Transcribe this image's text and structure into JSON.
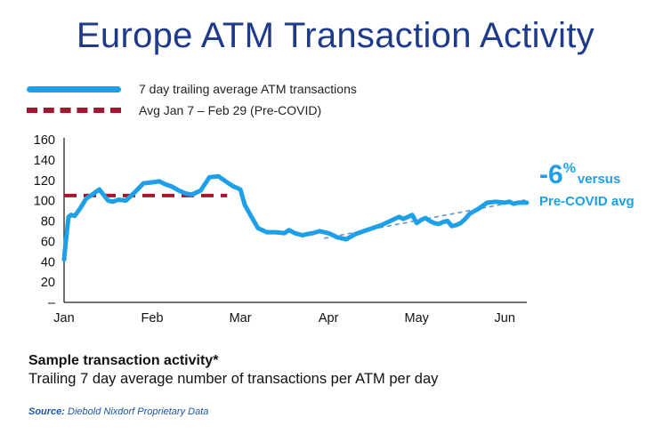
{
  "title": "Europe ATM Transaction Activity",
  "legend": [
    {
      "label": "7 day trailing average ATM transactions",
      "color": "#1ea0e8",
      "style": "solid"
    },
    {
      "label": "Avg Jan 7 – Feb 29 (Pre-COVID)",
      "color": "#a3172f",
      "style": "dashed"
    }
  ],
  "annotation": {
    "value": "-6",
    "unit": "%",
    "suffix": "versus",
    "line2": "Pre-COVID avg",
    "color": "#1ea0e8"
  },
  "footer": {
    "sample_title": "Sample transaction activity*",
    "sample_desc": "Trailing 7 day average number of transactions per ATM per day",
    "source_label": "Source:",
    "source_text": "Diebold Nixdorf Proprietary Data"
  },
  "chart_data": {
    "type": "line",
    "title": "Europe ATM Transaction Activity",
    "xlabel": "",
    "ylabel": "",
    "x_ticks": [
      "Jan",
      "Feb",
      "Mar",
      "Apr",
      "May",
      "Jun"
    ],
    "y_ticks": [
      "–",
      "20",
      "40",
      "60",
      "80",
      "100",
      "120",
      "140",
      "160"
    ],
    "xlim": [
      0,
      5.25
    ],
    "ylim": [
      0,
      160
    ],
    "grid": false,
    "legend_position": "top-left",
    "series": [
      {
        "name": "7 day trailing average ATM transactions",
        "color": "#1ea0e8",
        "x": [
          0.0,
          0.02,
          0.05,
          0.08,
          0.12,
          0.18,
          0.25,
          0.32,
          0.4,
          0.5,
          0.55,
          0.62,
          0.7,
          0.8,
          0.9,
          1.0,
          1.08,
          1.15,
          1.22,
          1.3,
          1.38,
          1.45,
          1.55,
          1.65,
          1.75,
          1.85,
          1.92,
          2.0,
          2.05,
          2.12,
          2.2,
          2.3,
          2.4,
          2.5,
          2.55,
          2.62,
          2.7,
          2.75,
          2.82,
          2.9,
          3.0,
          3.1,
          3.2,
          3.3,
          3.4,
          3.5,
          3.6,
          3.7,
          3.8,
          3.85,
          3.9,
          3.95,
          4.0,
          4.05,
          4.1,
          4.15,
          4.2,
          4.25,
          4.3,
          4.35,
          4.4,
          4.45,
          4.5,
          4.55,
          4.6,
          4.7,
          4.8,
          4.9,
          5.0,
          5.05,
          5.1,
          5.15,
          5.2,
          5.25
        ],
        "y": [
          42,
          60,
          84,
          86,
          85,
          92,
          102,
          106,
          111,
          100,
          99,
          101,
          100,
          108,
          117,
          118,
          119,
          116,
          114,
          110,
          107,
          106,
          110,
          123,
          124,
          118,
          114,
          111,
          96,
          85,
          73,
          69,
          69,
          68,
          71,
          68,
          66,
          67,
          68,
          70,
          68,
          64,
          62,
          67,
          70,
          73,
          76,
          80,
          84,
          82,
          84,
          86,
          78,
          81,
          83,
          80,
          78,
          77,
          79,
          80,
          75,
          76,
          78,
          82,
          87,
          92,
          98,
          99,
          98,
          99,
          97,
          98,
          98,
          98
        ]
      },
      {
        "name": "Avg Jan 7 – Feb 29 (Pre-COVID)",
        "color": "#a3172f",
        "x": [
          0.0,
          1.85
        ],
        "y": [
          105,
          105
        ]
      }
    ],
    "trend": {
      "x": [
        2.95,
        5.25
      ],
      "y": [
        63,
        101
      ],
      "color": "#5b8fd0"
    }
  }
}
